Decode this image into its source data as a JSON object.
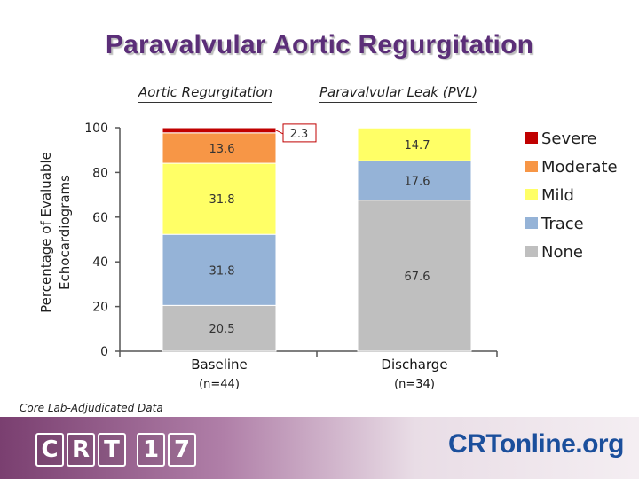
{
  "title": "Paravalvular Aortic Regurgitation",
  "subheads": [
    "Aortic Regurgitation",
    "Paravalvular Leak (PVL)"
  ],
  "note": "Core Lab-Adjudicated Data",
  "footer": {
    "logo_left": [
      "C",
      "R",
      "T",
      "1",
      "7"
    ],
    "logo_right": "CRTonline.org"
  },
  "colors": {
    "title": "#5b2e78",
    "Severe": "#c00000",
    "Moderate": "#f79646",
    "Mild": "#ffff66",
    "Trace": "#95b3d7",
    "None": "#bfbfbf"
  },
  "chart_data": {
    "type": "bar",
    "stacked": true,
    "ylabel": "Percentage of Evaluable Echocardiograms",
    "ylim": [
      0,
      100
    ],
    "yticks": [
      "0",
      "20",
      "40",
      "60",
      "80",
      "100"
    ],
    "categories": [
      "Baseline",
      "Discharge"
    ],
    "category_sublabels": [
      "(n=44)",
      "(n=34)"
    ],
    "series": [
      {
        "name": "None",
        "values": [
          20.5,
          67.6
        ]
      },
      {
        "name": "Trace",
        "values": [
          31.8,
          17.6
        ]
      },
      {
        "name": "Mild",
        "values": [
          31.8,
          14.7
        ]
      },
      {
        "name": "Moderate",
        "values": [
          13.6,
          0
        ]
      },
      {
        "name": "Severe",
        "values": [
          2.3,
          0
        ]
      }
    ],
    "data_labels": [
      [
        "20.5",
        "67.6"
      ],
      [
        "31.8",
        "17.6"
      ],
      [
        "31.8",
        "14.7"
      ],
      [
        "13.6",
        ""
      ],
      [
        "2.3",
        ""
      ]
    ],
    "legend_order": [
      "Severe",
      "Moderate",
      "Mild",
      "Trace",
      "None"
    ],
    "legend_position": "right",
    "grid": false
  }
}
